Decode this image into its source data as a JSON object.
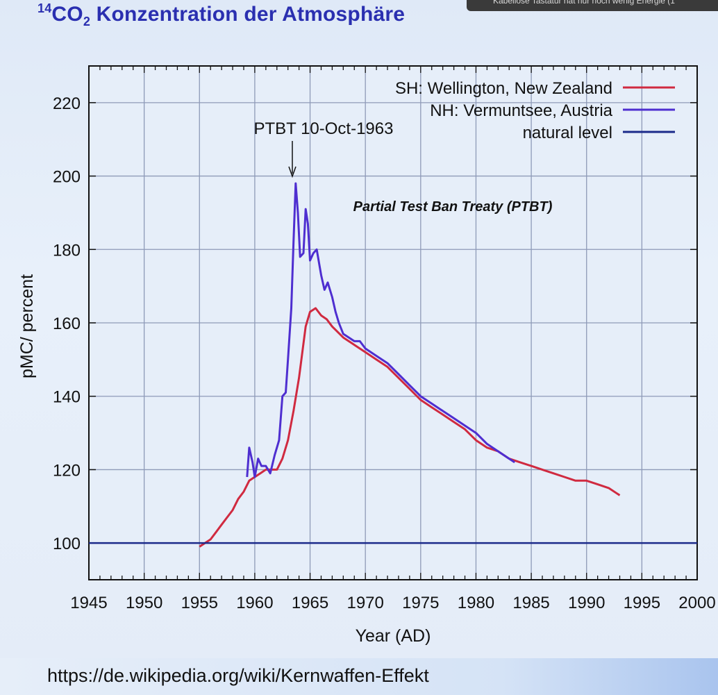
{
  "slide": {
    "title_sup": "14",
    "title_main": "CO",
    "title_sub": "2",
    "title_rest": " Konzentration der Atmosphäre",
    "url": "https://de.wikipedia.org/wiki/Kernwaffen-Effekt",
    "notification": "Kabellose Tastatur hat nur noch wenig Energie (1"
  },
  "colors": {
    "title": "#2a2fb0",
    "sh": "#d02a40",
    "nh": "#4e2ed0",
    "natural": "#1b2a8a",
    "grid": "#8e9ab8"
  },
  "chart_data": {
    "type": "line",
    "xlabel": "Year (AD)",
    "ylabel": "pMC/ percent",
    "xlim": [
      1945,
      2000
    ],
    "ylim": [
      90,
      230
    ],
    "xticks": [
      1945,
      1950,
      1955,
      1960,
      1965,
      1970,
      1975,
      1980,
      1985,
      1990,
      1995,
      2000
    ],
    "yticks": [
      100,
      120,
      140,
      160,
      180,
      200,
      220
    ],
    "grid": true,
    "legend_position": "top-right",
    "annotations": [
      {
        "text": "PTBT 10-Oct-1963",
        "x": 1963.78,
        "y": 200
      },
      {
        "text": "Partial Test Ban Treaty (PTBT)",
        "x": 1973.5,
        "y": 190
      }
    ],
    "series": [
      {
        "name": "SH: Wellington, New Zealand",
        "x": [
          1955.0,
          1955.5,
          1956.0,
          1956.5,
          1957.0,
          1957.5,
          1958.0,
          1958.5,
          1959.0,
          1959.5,
          1960.0,
          1960.5,
          1961.0,
          1961.5,
          1962.0,
          1962.5,
          1963.0,
          1963.5,
          1964.0,
          1964.3,
          1964.6,
          1965.0,
          1965.5,
          1966.0,
          1966.5,
          1967.0,
          1968.0,
          1969.0,
          1970.0,
          1971.0,
          1972.0,
          1973.0,
          1974.0,
          1975.0,
          1976.0,
          1977.0,
          1978.0,
          1979.0,
          1980.0,
          1981.0,
          1982.0,
          1983.0,
          1984.0,
          1985.0,
          1986.0,
          1987.0,
          1988.0,
          1989.0,
          1990.0,
          1991.0,
          1992.0,
          1993.0
        ],
        "values": [
          99,
          100,
          101,
          103,
          105,
          107,
          109,
          112,
          114,
          117,
          118,
          119,
          120,
          120,
          120,
          123,
          128,
          136,
          145,
          152,
          159,
          163,
          164,
          162,
          161,
          159,
          156,
          154,
          152,
          150,
          148,
          145,
          142,
          139,
          137,
          135,
          133,
          131,
          128,
          126,
          125,
          123,
          122,
          121,
          120,
          119,
          118,
          117,
          117,
          116,
          115,
          113
        ]
      },
      {
        "name": "NH: Vermuntsee, Austria",
        "x": [
          1959.3,
          1959.5,
          1959.8,
          1960.0,
          1960.3,
          1960.6,
          1961.0,
          1961.4,
          1961.8,
          1962.2,
          1962.5,
          1962.8,
          1963.0,
          1963.3,
          1963.5,
          1963.7,
          1963.9,
          1964.1,
          1964.4,
          1964.6,
          1964.8,
          1965.0,
          1965.3,
          1965.6,
          1966.0,
          1966.3,
          1966.6,
          1967.0,
          1967.3,
          1967.6,
          1968.0,
          1968.5,
          1969.0,
          1969.5,
          1970.0,
          1971.0,
          1972.0,
          1973.0,
          1974.0,
          1975.0,
          1976.0,
          1977.0,
          1978.0,
          1979.0,
          1980.0,
          1981.0,
          1982.0,
          1983.0,
          1983.5
        ],
        "values": [
          118,
          126,
          122,
          118,
          123,
          121,
          121,
          119,
          124,
          128,
          140,
          141,
          150,
          164,
          182,
          198,
          190,
          178,
          179,
          191,
          187,
          177,
          179,
          180,
          173,
          169,
          171,
          167,
          163,
          160,
          157,
          156,
          155,
          155,
          153,
          151,
          149,
          146,
          143,
          140,
          138,
          136,
          134,
          132,
          130,
          127,
          125,
          123,
          122
        ]
      },
      {
        "name": "natural level",
        "x": [
          1945,
          2000
        ],
        "values": [
          100,
          100
        ]
      }
    ]
  }
}
